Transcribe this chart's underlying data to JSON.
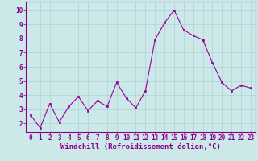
{
  "x": [
    0,
    1,
    2,
    3,
    4,
    5,
    6,
    7,
    8,
    9,
    10,
    11,
    12,
    13,
    14,
    15,
    16,
    17,
    18,
    19,
    20,
    21,
    22,
    23
  ],
  "y": [
    2.6,
    1.7,
    3.4,
    2.1,
    3.2,
    3.9,
    2.9,
    3.6,
    3.2,
    4.9,
    3.8,
    3.1,
    4.3,
    7.9,
    9.1,
    10.0,
    8.6,
    8.2,
    7.9,
    6.3,
    4.9,
    4.3,
    4.7,
    4.5
  ],
  "line_color": "#990099",
  "marker_color": "#990099",
  "bg_color": "#cce8e8",
  "grid_color": "#aad4d4",
  "xlabel": "Windchill (Refroidissement éolien,°C)",
  "xlim": [
    -0.5,
    23.5
  ],
  "ylim": [
    1.4,
    10.6
  ],
  "yticks": [
    2,
    3,
    4,
    5,
    6,
    7,
    8,
    9,
    10
  ],
  "xticks": [
    0,
    1,
    2,
    3,
    4,
    5,
    6,
    7,
    8,
    9,
    10,
    11,
    12,
    13,
    14,
    15,
    16,
    17,
    18,
    19,
    20,
    21,
    22,
    23
  ],
  "axis_color": "#880088",
  "tick_label_fontsize": 5.5,
  "xlabel_fontsize": 6.5
}
